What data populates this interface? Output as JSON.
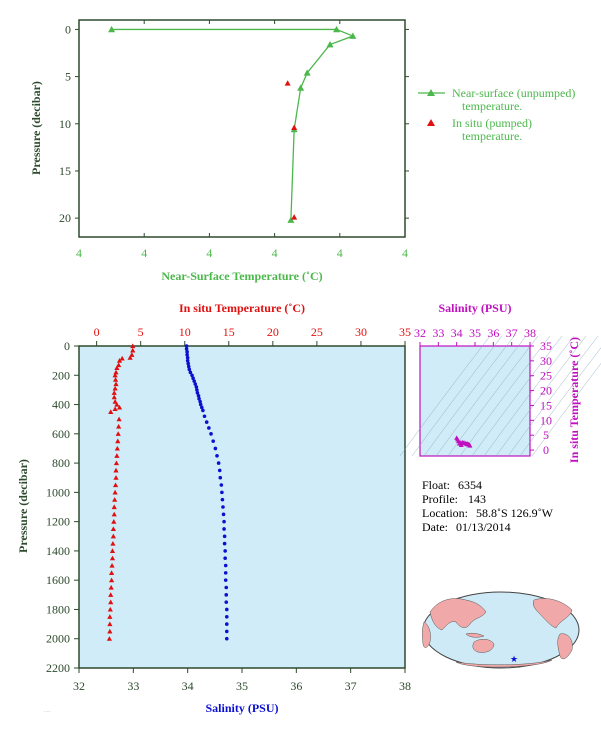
{
  "colors": {
    "green": "#4cb84c",
    "red": "#e01010",
    "blue": "#0a10d0",
    "magenta": "#c010c0",
    "axis_dark": "#2d4a2d",
    "plot_bg": "#d0ecf8",
    "land": "#f0a8a8",
    "ocean": "#cdeaf6"
  },
  "chart_data": [
    {
      "id": "near-surface",
      "type": "line",
      "xlabel": "Near-Surface Temperature (˚C)",
      "ylabel": "Pressure (decibar)",
      "x_tick_labels": [
        "4",
        "4",
        "4",
        "4",
        "4",
        "4"
      ],
      "ylim": [
        22,
        -1
      ],
      "y_ticks": [
        0,
        5,
        10,
        15,
        20
      ],
      "series": [
        {
          "name": "Near-surface (unpumped) temperature.",
          "marker": "triangle-line",
          "points": [
            [
              0.1,
              0.0
            ],
            [
              0.79,
              0.0
            ],
            [
              0.84,
              0.7
            ],
            [
              0.77,
              1.6
            ],
            [
              0.7,
              4.6
            ],
            [
              0.68,
              6.2
            ],
            [
              0.66,
              10.6
            ],
            [
              0.65,
              20.2
            ]
          ]
        },
        {
          "name": "In situ (pumped) temperature.",
          "marker": "triangle",
          "points": [
            [
              0.64,
              5.7
            ],
            [
              0.66,
              10.4
            ],
            [
              0.66,
              19.9
            ]
          ]
        }
      ],
      "legend": [
        "Near-surface (unpumped)",
        "temperature.",
        "In situ (pumped)",
        "temperature."
      ]
    },
    {
      "id": "profile",
      "type": "scatter",
      "ylabel": "Pressure (decibar)",
      "top_axis": {
        "label": "In situ Temperature (˚C)",
        "range": [
          -2,
          35
        ],
        "ticks": [
          0,
          5,
          10,
          15,
          20,
          25,
          30,
          35
        ]
      },
      "bottom_axis": {
        "label": "Salinity (PSU)",
        "range": [
          32,
          38
        ],
        "ticks": [
          32,
          33,
          34,
          35,
          36,
          37,
          38
        ]
      },
      "ylim": [
        2200,
        0
      ],
      "y_ticks": [
        0,
        200,
        400,
        600,
        800,
        1000,
        1200,
        1400,
        1600,
        1800,
        2000,
        2200
      ],
      "temperature": [
        [
          4.1,
          0
        ],
        [
          4.1,
          30
        ],
        [
          4.0,
          60
        ],
        [
          3.8,
          80
        ],
        [
          2.9,
          85
        ],
        [
          2.6,
          100
        ],
        [
          2.5,
          130
        ],
        [
          2.3,
          150
        ],
        [
          2.2,
          180
        ],
        [
          2.1,
          200
        ],
        [
          2.15,
          230
        ],
        [
          2.2,
          260
        ],
        [
          2.1,
          290
        ],
        [
          2.0,
          320
        ],
        [
          2.0,
          350
        ],
        [
          2.1,
          380
        ],
        [
          2.3,
          400
        ],
        [
          2.1,
          430
        ],
        [
          1.6,
          450
        ],
        [
          2.6,
          420
        ],
        [
          2.55,
          500
        ],
        [
          2.5,
          550
        ],
        [
          2.45,
          600
        ],
        [
          2.4,
          650
        ],
        [
          2.35,
          700
        ],
        [
          2.3,
          750
        ],
        [
          2.25,
          800
        ],
        [
          2.2,
          850
        ],
        [
          2.2,
          900
        ],
        [
          2.15,
          950
        ],
        [
          2.1,
          1000
        ],
        [
          2.05,
          1050
        ],
        [
          2.0,
          1100
        ],
        [
          2.0,
          1150
        ],
        [
          1.95,
          1200
        ],
        [
          1.9,
          1250
        ],
        [
          1.9,
          1300
        ],
        [
          1.85,
          1350
        ],
        [
          1.8,
          1400
        ],
        [
          1.8,
          1450
        ],
        [
          1.75,
          1500
        ],
        [
          1.7,
          1550
        ],
        [
          1.7,
          1600
        ],
        [
          1.65,
          1650
        ],
        [
          1.6,
          1700
        ],
        [
          1.6,
          1750
        ],
        [
          1.55,
          1800
        ],
        [
          1.5,
          1850
        ],
        [
          1.5,
          1900
        ],
        [
          1.5,
          1950
        ],
        [
          1.45,
          2000
        ]
      ],
      "salinity": [
        [
          33.98,
          0
        ],
        [
          33.98,
          20
        ],
        [
          33.99,
          40
        ],
        [
          33.99,
          60
        ],
        [
          34.0,
          80
        ],
        [
          34.0,
          100
        ],
        [
          34.01,
          120
        ],
        [
          34.02,
          140
        ],
        [
          34.03,
          160
        ],
        [
          34.05,
          180
        ],
        [
          34.08,
          200
        ],
        [
          34.1,
          220
        ],
        [
          34.12,
          240
        ],
        [
          34.14,
          260
        ],
        [
          34.16,
          280
        ],
        [
          34.17,
          300
        ],
        [
          34.18,
          320
        ],
        [
          34.2,
          340
        ],
        [
          34.21,
          360
        ],
        [
          34.23,
          380
        ],
        [
          34.24,
          400
        ],
        [
          34.26,
          420
        ],
        [
          34.28,
          440
        ],
        [
          34.31,
          480
        ],
        [
          34.35,
          520
        ],
        [
          34.39,
          560
        ],
        [
          34.43,
          600
        ],
        [
          34.47,
          650
        ],
        [
          34.51,
          700
        ],
        [
          34.54,
          750
        ],
        [
          34.57,
          800
        ],
        [
          34.59,
          850
        ],
        [
          34.6,
          900
        ],
        [
          34.62,
          950
        ],
        [
          34.63,
          1000
        ],
        [
          34.64,
          1050
        ],
        [
          34.65,
          1100
        ],
        [
          34.66,
          1150
        ],
        [
          34.67,
          1200
        ],
        [
          34.67,
          1250
        ],
        [
          34.68,
          1300
        ],
        [
          34.68,
          1350
        ],
        [
          34.69,
          1400
        ],
        [
          34.69,
          1450
        ],
        [
          34.7,
          1500
        ],
        [
          34.7,
          1550
        ],
        [
          34.7,
          1600
        ],
        [
          34.71,
          1650
        ],
        [
          34.71,
          1700
        ],
        [
          34.71,
          1750
        ],
        [
          34.72,
          1800
        ],
        [
          34.72,
          1850
        ],
        [
          34.72,
          1900
        ],
        [
          34.72,
          1950
        ],
        [
          34.72,
          2000
        ]
      ]
    },
    {
      "id": "ts-diagram",
      "type": "scatter",
      "xlabel": "Salinity (PSU)",
      "ylabel": "In situ Temperature (˚C)",
      "xlim": [
        32,
        38
      ],
      "ylim": [
        -2,
        35
      ],
      "x_ticks": [
        32,
        33,
        34,
        35,
        36,
        37,
        38
      ],
      "y_ticks": [
        0,
        5,
        10,
        15,
        20,
        25,
        30,
        35
      ],
      "points": [
        [
          34.0,
          4.1
        ],
        [
          34.05,
          3.6
        ],
        [
          34.1,
          3.0
        ],
        [
          34.2,
          2.5
        ],
        [
          34.3,
          2.6
        ],
        [
          34.4,
          2.5
        ],
        [
          34.5,
          2.3
        ],
        [
          34.6,
          2.1
        ],
        [
          34.7,
          1.8
        ],
        [
          34.72,
          1.5
        ],
        [
          34.15,
          2.2
        ],
        [
          34.25,
          1.7
        ],
        [
          34.35,
          2.3
        ],
        [
          34.55,
          2.0
        ],
        [
          34.65,
          1.9
        ]
      ]
    }
  ],
  "info": {
    "float_label": "Float:",
    "float": "6354",
    "profile_label": "Profile:",
    "profile": "143",
    "location_label": "Location:",
    "location": "58.8˚S  126.9˚W",
    "date_label": "Date:",
    "date": "01/13/2014"
  },
  "map": {
    "float_marker_lon_lat": [
      -126.9,
      -58.8
    ]
  }
}
